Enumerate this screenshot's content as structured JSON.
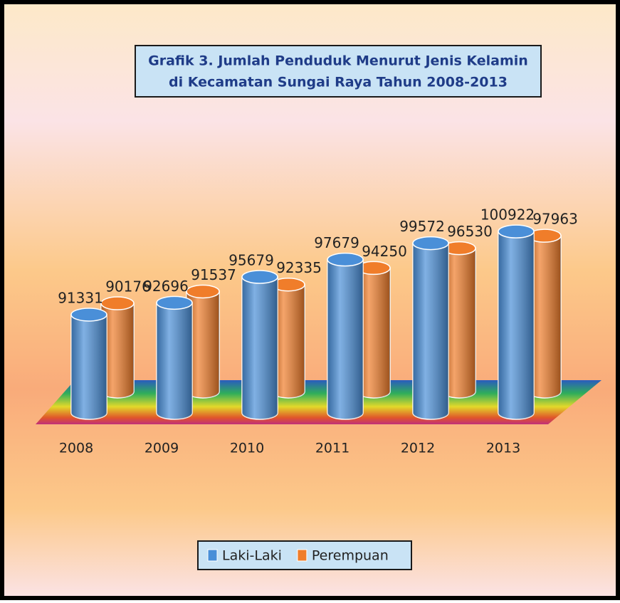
{
  "chart_data": {
    "type": "bar3d",
    "title": [
      "Grafik 3. Jumlah Penduduk Menurut Jenis Kelamin",
      "di Kecamatan Sungai Raya Tahun 2008-2013"
    ],
    "categories": [
      "2008",
      "2009",
      "2010",
      "2011",
      "2012",
      "2013"
    ],
    "series": [
      {
        "name": "Laki-Laki",
        "color": "#4a8fd8",
        "values": [
          91331,
          92696,
          95679,
          97679,
          99572,
          100922
        ]
      },
      {
        "name": "Perempuan",
        "color": "#f07d2a",
        "values": [
          90176,
          91537,
          92335,
          94250,
          96530,
          97963
        ]
      }
    ],
    "ylim": [
      80000,
      102000
    ],
    "legend": "bottom"
  }
}
